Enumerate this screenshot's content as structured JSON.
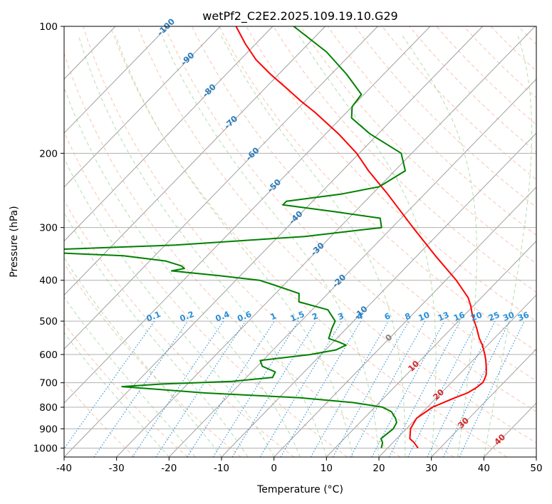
{
  "chart_data": {
    "type": "line",
    "title": "wetPf2_C2E2.2025.109.19.10.G29",
    "xlabel": "Temperature (°C)",
    "ylabel": "Pressure (hPa)",
    "xlim": [
      -40,
      50
    ],
    "ylim": [
      1050,
      100
    ],
    "y_scale": "log",
    "skew": true,
    "grid": true,
    "x_ticks": [
      -40,
      -30,
      -20,
      -10,
      0,
      10,
      20,
      30,
      40,
      50
    ],
    "y_ticks": [
      100,
      200,
      300,
      400,
      500,
      600,
      700,
      800,
      900,
      1000
    ],
    "series": [
      {
        "color": "#ff0000",
        "pressure": [
          1000,
          970,
          950,
          900,
          850,
          800,
          760,
          740,
          720,
          700,
          690,
          670,
          650,
          620,
          600,
          570,
          550,
          520,
          500,
          480,
          460,
          440,
          400,
          350,
          300,
          250,
          220,
          200,
          180,
          160,
          150,
          140,
          130,
          120,
          110,
          100
        ],
        "temperature": [
          25.8,
          24.0,
          22.5,
          20.8,
          20.0,
          21.0,
          23.5,
          25.0,
          25.7,
          26.0,
          25.8,
          25.2,
          24.2,
          22.5,
          21.2,
          19.0,
          17.2,
          14.8,
          13.0,
          11.2,
          9.5,
          7.5,
          2.0,
          -6.5,
          -16.0,
          -27.0,
          -35.0,
          -40.5,
          -47.5,
          -56.0,
          -61.0,
          -66.0,
          -71.5,
          -77.0,
          -82.0,
          -87.0
        ]
      },
      {
        "color": "#008000",
        "pressure": [
          1000,
          970,
          950,
          900,
          870,
          850,
          820,
          800,
          780,
          760,
          740,
          725,
          715,
          705,
          695,
          680,
          660,
          640,
          620,
          600,
          585,
          570,
          560,
          550,
          520,
          500,
          470,
          450,
          430,
          410,
          400,
          390,
          380,
          375,
          370,
          360,
          350,
          345,
          340,
          330,
          315,
          300,
          285,
          275,
          265,
          260,
          250,
          240,
          220,
          200,
          180,
          165,
          155,
          145,
          130,
          115,
          100
        ],
        "temperature": [
          18.8,
          18.0,
          17.0,
          17.5,
          17.0,
          16.0,
          14.0,
          11.5,
          5.0,
          -6.0,
          -25.0,
          -35.0,
          -42.0,
          -35.0,
          -22.0,
          -15.0,
          -15.5,
          -19.0,
          -20.5,
          -12.0,
          -8.0,
          -7.0,
          -9.0,
          -11.5,
          -12.8,
          -13.5,
          -17.0,
          -24.0,
          -25.5,
          -32.0,
          -35.5,
          -44.0,
          -54.0,
          -52.0,
          -53.0,
          -57.0,
          -66.0,
          -78.0,
          -85.0,
          -58.0,
          -35.0,
          -22.0,
          -24.0,
          -34.0,
          -45.0,
          -45.0,
          -36.0,
          -30.0,
          -28.0,
          -32.0,
          -41.5,
          -48.0,
          -50.0,
          -50.5,
          -57.0,
          -65.0,
          -76.0
        ]
      }
    ],
    "dry_adiabat_labels": [
      -100,
      -90,
      -80,
      -70,
      -60,
      -50,
      -40,
      -30,
      -20,
      -10,
      0,
      10,
      20,
      30,
      40
    ],
    "mixing_ratio_labels": [
      "0.1",
      "0.2",
      "0.4",
      "0.6",
      "1",
      "1.5",
      "2",
      "3",
      "4",
      "6",
      "8",
      "10",
      "13",
      "16",
      "20",
      "25",
      "30",
      "36"
    ]
  }
}
